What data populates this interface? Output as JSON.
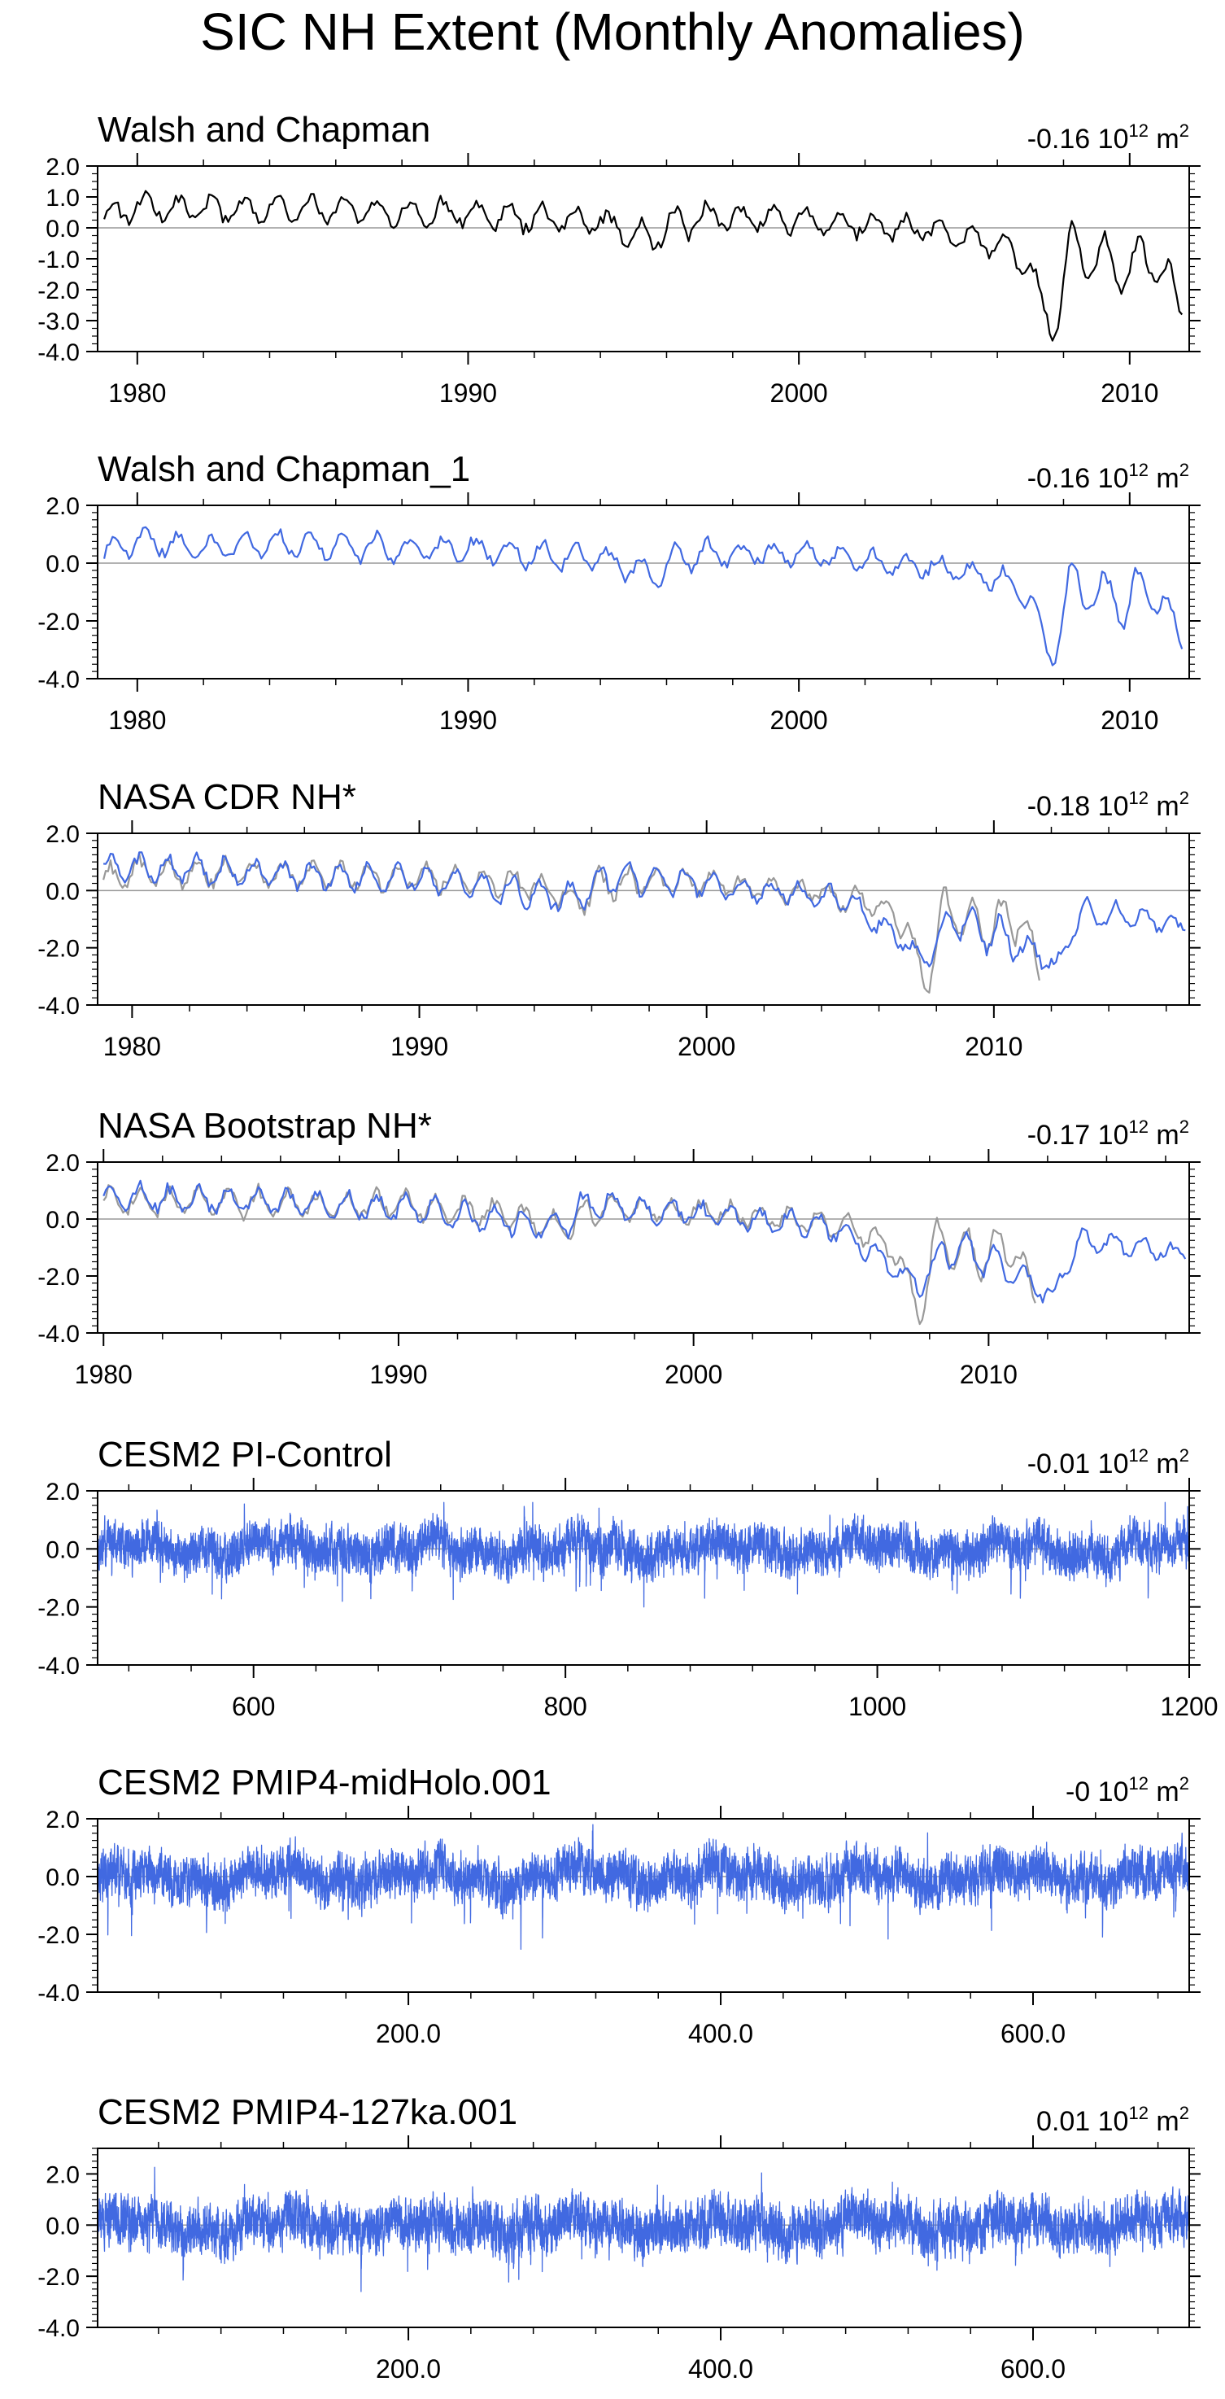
{
  "title": "SIC NH Extent (Monthly Anomalies)",
  "unit_label": "10",
  "unit_exp": "12",
  "unit_suffix": "m",
  "unit_suffix_exp": "2",
  "colors": {
    "obs": "#000000",
    "model": "#4169e1",
    "ref": "#999999",
    "zero": "#999999",
    "axis": "#000000"
  },
  "chart_data": [
    {
      "type": "line",
      "title": "Walsh and Chapman",
      "mean": "-0.16",
      "x_range": [
        1978.8,
        2011.8
      ],
      "xticks": [
        1980,
        1990,
        2000,
        2010
      ],
      "xtick_labels": [
        "1980",
        "1990",
        "2000",
        "2010"
      ],
      "ylim": [
        -4.0,
        2.0
      ],
      "yticks": [
        2.0,
        1.0,
        0.0,
        -1.0,
        -2.0,
        -3.0,
        -4.0
      ],
      "ytick_labels": [
        "2.0",
        "1.0",
        "0.0",
        "-1.0",
        "-2.0",
        "-3.0",
        "-4.0"
      ],
      "series": [
        {
          "name": "Walsh and Chapman",
          "color": "obs",
          "x": [
            1979,
            1980,
            1982,
            1984,
            1986,
            1988,
            1990,
            1992,
            1994,
            1995.5,
            1996.5,
            1998,
            2000,
            2002,
            2003,
            2004,
            2005,
            2006,
            2007,
            2007.7,
            2008.2,
            2009,
            2010,
            2010.8,
            2011.6
          ],
          "y": [
            0.3,
            0.7,
            0.6,
            0.6,
            0.6,
            0.5,
            0.5,
            0.3,
            0.2,
            -0.4,
            0.3,
            0.3,
            0.3,
            0.1,
            0.0,
            -0.1,
            -0.3,
            -0.5,
            -1.3,
            -3.6,
            -0.6,
            -1.1,
            -1.3,
            -0.8,
            -2.8
          ],
          "amp": [
            0.5,
            0.5,
            0.5,
            0.5,
            0.5,
            0.5,
            0.5,
            0.5,
            0.5,
            0.6,
            0.7,
            0.4,
            0.4,
            0.4,
            0.4,
            0.4,
            0.5,
            0.5,
            0.6,
            0.2,
            0.8,
            1.0,
            1.1,
            1.1,
            0.5
          ]
        }
      ]
    },
    {
      "type": "line",
      "title": "Walsh and Chapman_1",
      "mean": "-0.16",
      "x_range": [
        1978.8,
        2011.8
      ],
      "xticks": [
        1980,
        1990,
        2000,
        2010
      ],
      "xtick_labels": [
        "1980",
        "1990",
        "2000",
        "2010"
      ],
      "ylim": [
        -4.0,
        2.0
      ],
      "yticks": [
        2.0,
        0.0,
        -2.0,
        -4.0
      ],
      "ytick_labels": [
        "2.0",
        "0.0",
        "-2.0",
        "-4.0"
      ],
      "series": [
        {
          "name": "Walsh and Chapman_1",
          "color": "model",
          "x": [
            1979,
            1980,
            1982,
            1984,
            1986,
            1988,
            1990,
            1992,
            1994,
            1995.5,
            1996.5,
            1998,
            2000,
            2002,
            2003,
            2004,
            2005,
            2006,
            2007,
            2007.7,
            2008.2,
            2009,
            2010,
            2010.8,
            2011.6
          ],
          "y": [
            0.3,
            0.7,
            0.6,
            0.6,
            0.6,
            0.5,
            0.5,
            0.3,
            0.2,
            -0.4,
            0.3,
            0.3,
            0.3,
            0.1,
            0.0,
            -0.1,
            -0.3,
            -0.5,
            -1.3,
            -3.6,
            -0.6,
            -1.1,
            -1.3,
            -0.8,
            -2.8
          ],
          "amp": [
            0.5,
            0.5,
            0.5,
            0.5,
            0.5,
            0.5,
            0.5,
            0.5,
            0.5,
            0.6,
            0.7,
            0.4,
            0.4,
            0.4,
            0.4,
            0.4,
            0.5,
            0.5,
            0.6,
            0.2,
            0.8,
            1.0,
            1.1,
            1.1,
            0.5
          ]
        }
      ]
    },
    {
      "type": "line",
      "title": "NASA CDR NH*",
      "mean": "-0.18",
      "x_range": [
        1978.8,
        2016.8
      ],
      "xticks": [
        1980,
        1990,
        2000,
        2010
      ],
      "xtick_labels": [
        "1980",
        "1990",
        "2000",
        "2010"
      ],
      "ylim": [
        -4.0,
        2.0
      ],
      "yticks": [
        2.0,
        0.0,
        -2.0,
        -4.0
      ],
      "ytick_labels": [
        "2.0",
        "0.0",
        "-2.0",
        "-4.0"
      ],
      "series": [
        {
          "name": "Walsh and Chapman (reference)",
          "color": "ref",
          "x": [
            1979,
            1980,
            1982,
            1984,
            1986,
            1988,
            1990,
            1992,
            1994,
            1995.5,
            1996.5,
            1998,
            2000,
            2002,
            2003,
            2004,
            2005,
            2006,
            2007,
            2007.7,
            2008.2,
            2009,
            2010,
            2010.8,
            2011.6
          ],
          "y": [
            0.3,
            0.7,
            0.6,
            0.6,
            0.6,
            0.5,
            0.5,
            0.3,
            0.2,
            -0.4,
            0.3,
            0.3,
            0.3,
            0.1,
            0.0,
            -0.1,
            -0.3,
            -0.5,
            -1.3,
            -3.6,
            -0.6,
            -1.1,
            -1.3,
            -0.8,
            -2.8
          ],
          "amp": [
            0.5,
            0.5,
            0.5,
            0.5,
            0.5,
            0.5,
            0.5,
            0.5,
            0.5,
            0.6,
            0.7,
            0.4,
            0.4,
            0.4,
            0.4,
            0.4,
            0.5,
            0.5,
            0.6,
            0.2,
            0.8,
            1.0,
            1.1,
            1.1,
            0.5
          ]
        },
        {
          "name": "NASA CDR NH",
          "color": "model",
          "x": [
            1979,
            1980,
            1985,
            1990,
            1995.5,
            1996.5,
            2000,
            2003,
            2005,
            2007.7,
            2008.5,
            2010,
            2012.2,
            2013,
            2015,
            2016.7
          ],
          "y": [
            0.8,
            0.8,
            0.6,
            0.4,
            -0.3,
            0.5,
            0.2,
            -0.1,
            -0.4,
            -2.5,
            -1.0,
            -1.5,
            -2.6,
            -0.8,
            -0.9,
            -1.3
          ],
          "amp": [
            0.4,
            0.5,
            0.5,
            0.5,
            0.6,
            0.7,
            0.4,
            0.4,
            0.5,
            0.3,
            0.7,
            0.8,
            0.3,
            0.5,
            0.4,
            0.3
          ]
        }
      ]
    },
    {
      "type": "line",
      "title": "NASA Bootstrap NH*",
      "mean": "-0.17",
      "x_range": [
        1979.8,
        2016.8
      ],
      "xticks": [
        1980,
        1990,
        2000,
        2010
      ],
      "xtick_labels": [
        "1980",
        "1990",
        "2000",
        "2010"
      ],
      "ylim": [
        -4.0,
        2.0
      ],
      "yticks": [
        2.0,
        0.0,
        -2.0,
        -4.0
      ],
      "ytick_labels": [
        "2.0",
        "0.0",
        "-2.0",
        "-4.0"
      ],
      "series": [
        {
          "name": "Walsh and Chapman (reference)",
          "color": "ref",
          "x": [
            1980,
            1982,
            1984,
            1986,
            1988,
            1990,
            1992,
            1994,
            1995.5,
            1996.5,
            1998,
            2000,
            2002,
            2003,
            2004,
            2005,
            2006,
            2007,
            2007.7,
            2008.2,
            2009,
            2010,
            2010.8,
            2011.6
          ],
          "y": [
            0.7,
            0.6,
            0.6,
            0.6,
            0.5,
            0.5,
            0.3,
            0.2,
            -0.4,
            0.3,
            0.3,
            0.3,
            0.1,
            0.0,
            -0.1,
            -0.3,
            -0.5,
            -1.3,
            -3.6,
            -0.6,
            -1.1,
            -1.3,
            -0.8,
            -2.8
          ],
          "amp": [
            0.5,
            0.5,
            0.5,
            0.5,
            0.5,
            0.5,
            0.5,
            0.5,
            0.6,
            0.7,
            0.4,
            0.4,
            0.4,
            0.4,
            0.4,
            0.5,
            0.5,
            0.6,
            0.2,
            0.8,
            1.0,
            1.1,
            1.1,
            0.5
          ]
        },
        {
          "name": "NASA Bootstrap NH",
          "color": "model",
          "x": [
            1980,
            1985,
            1990,
            1995.5,
            1996.5,
            2000,
            2003,
            2005,
            2007.7,
            2008.5,
            2010,
            2012.2,
            2013,
            2015,
            2016.7
          ],
          "y": [
            0.8,
            0.6,
            0.4,
            -0.3,
            0.5,
            0.2,
            -0.1,
            -0.4,
            -2.4,
            -1.0,
            -1.4,
            -2.7,
            -0.8,
            -0.9,
            -1.3
          ],
          "amp": [
            0.5,
            0.5,
            0.5,
            0.6,
            0.7,
            0.4,
            0.4,
            0.5,
            0.3,
            0.7,
            0.8,
            0.3,
            0.5,
            0.4,
            0.3
          ]
        }
      ]
    },
    {
      "type": "line",
      "title": "CESM2 PI-Control",
      "mean": "-0.01",
      "x_range": [
        500,
        1200
      ],
      "xticks": [
        600,
        800,
        1000,
        1200
      ],
      "xtick_labels": [
        "600",
        "800",
        "1000",
        "1200"
      ],
      "ylim": [
        -4.0,
        2.0
      ],
      "yticks": [
        2.0,
        0.0,
        -2.0,
        -4.0
      ],
      "ytick_labels": [
        "2.0",
        "0.0",
        "-2.0",
        "-4.0"
      ],
      "series": [
        {
          "name": "CESM2 PI-Control",
          "color": "model",
          "noise": true,
          "x": [
            500,
            1200
          ],
          "y": [
            0.0,
            0.0
          ],
          "amp": 0.55,
          "spread": [
            -2.0,
            1.6
          ],
          "points": 8400,
          "seed": 11
        }
      ]
    },
    {
      "type": "line",
      "title": "CESM2 PMIP4-midHolo.001",
      "mean": "-0",
      "x_range": [
        1,
        700
      ],
      "xticks": [
        200,
        400,
        600
      ],
      "xtick_labels": [
        "200.0",
        "400.0",
        "600.0"
      ],
      "ylim": [
        -4.0,
        2.0
      ],
      "yticks": [
        2.0,
        0.0,
        -2.0,
        -4.0
      ],
      "ytick_labels": [
        "2.0",
        "0.0",
        "-2.0",
        "-4.0"
      ],
      "series": [
        {
          "name": "CESM2 PMIP4-midHolo.001",
          "color": "model",
          "noise": true,
          "x": [
            1,
            700
          ],
          "y": [
            0.0,
            0.0
          ],
          "amp": 0.6,
          "spread": [
            -2.6,
            1.8
          ],
          "points": 8400,
          "seed": 23
        }
      ]
    },
    {
      "type": "line",
      "title": "CESM2 PMIP4-127ka.001",
      "mean": "0.01",
      "x_range": [
        1,
        700
      ],
      "xticks": [
        200,
        400,
        600
      ],
      "xtick_labels": [
        "200.0",
        "400.0",
        "600.0"
      ],
      "ylim": [
        -4.0,
        3.0
      ],
      "yticks": [
        2.0,
        0.0,
        -2.0,
        -4.0
      ],
      "ytick_labels": [
        "2.0",
        "0.0",
        "-2.0",
        "-4.0"
      ],
      "series": [
        {
          "name": "CESM2 PMIP4-127ka.001",
          "color": "model",
          "noise": true,
          "x": [
            1,
            700
          ],
          "y": [
            0.0,
            0.0
          ],
          "amp": 0.7,
          "spread": [
            -2.6,
            2.6
          ],
          "points": 8400,
          "seed": 37
        }
      ]
    }
  ]
}
